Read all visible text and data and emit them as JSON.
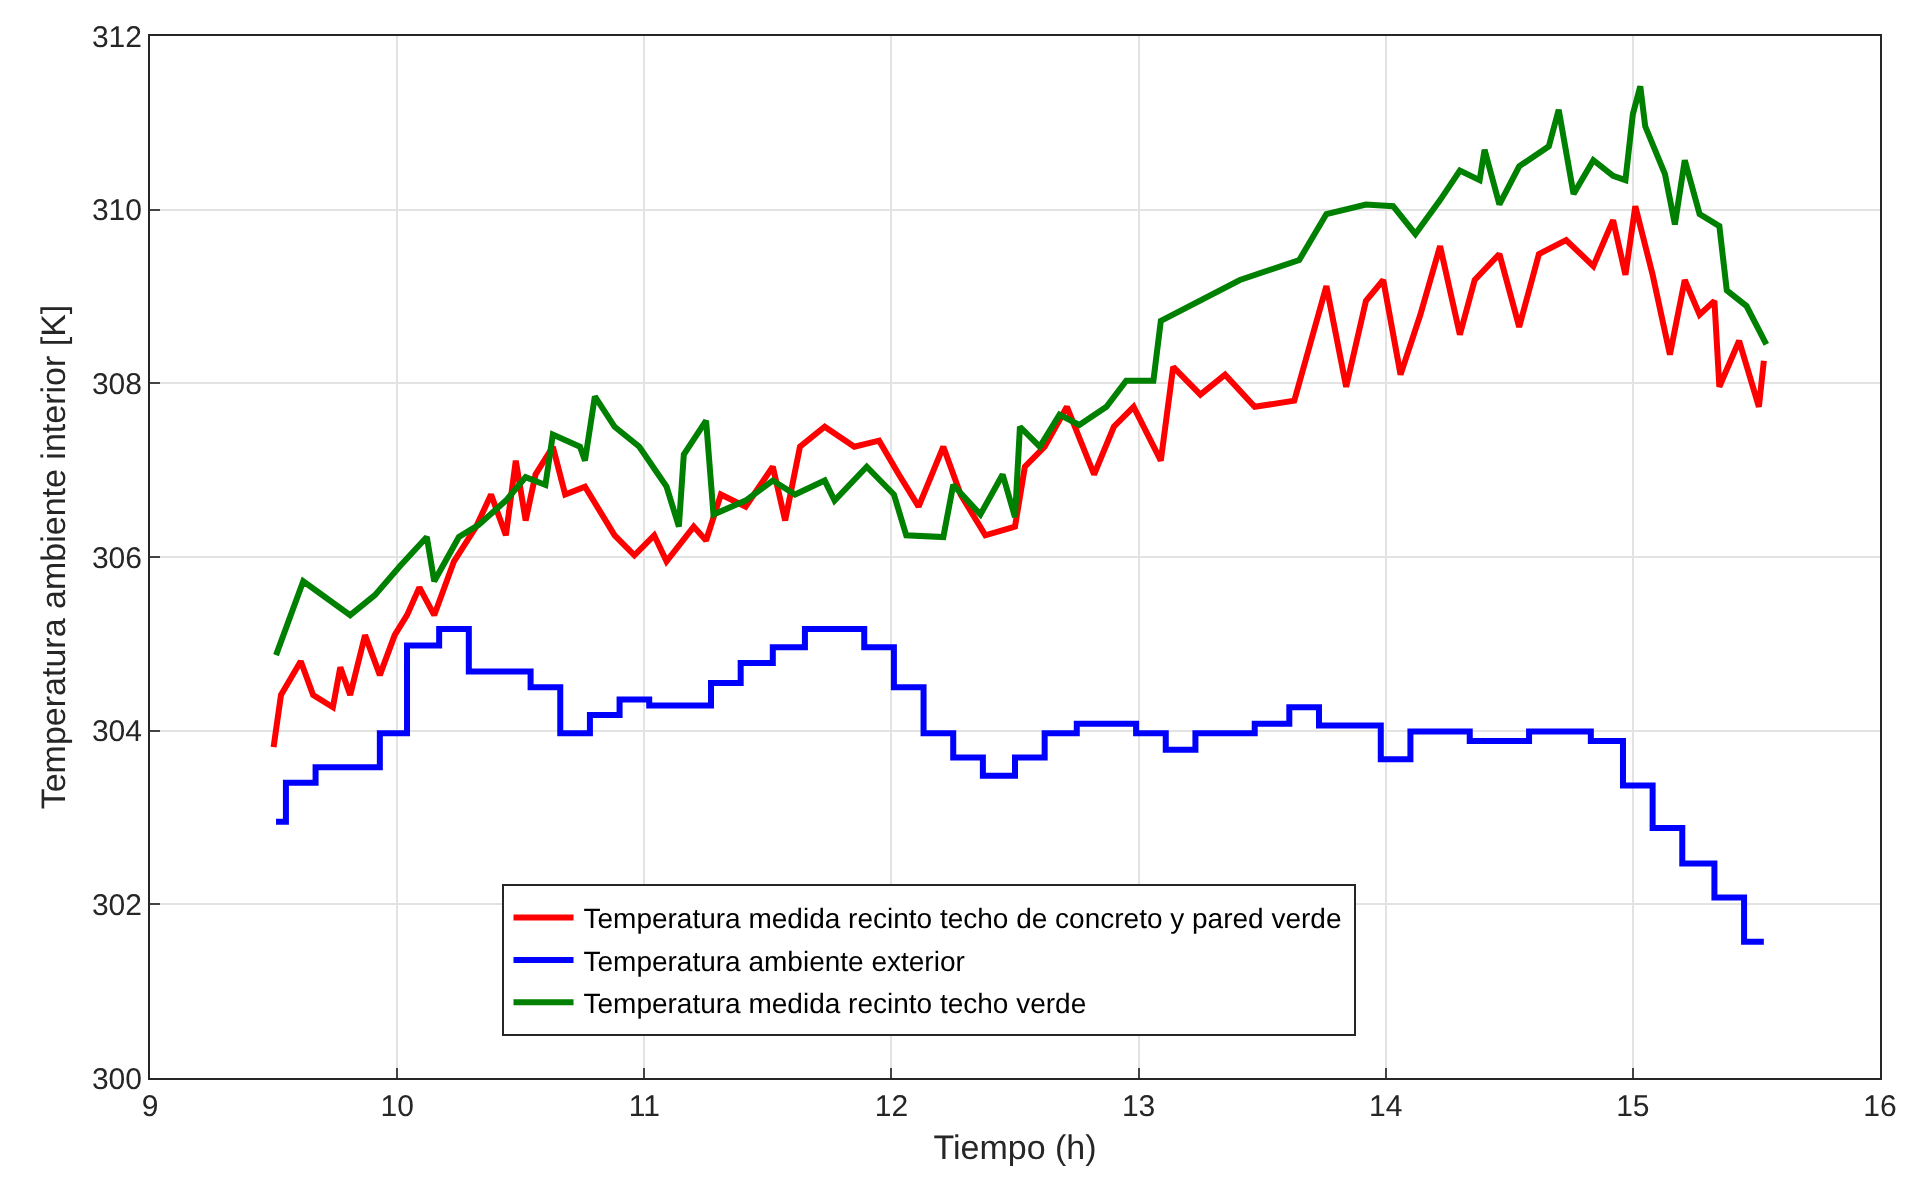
{
  "chart_data": {
    "type": "line",
    "xlabel": "Tiempo (h)",
    "ylabel": "Temperatura ambiente interior [K]",
    "xlim": [
      9,
      16
    ],
    "xticks": [
      9,
      10,
      11,
      12,
      13,
      14,
      15,
      16
    ],
    "ylim": [
      300,
      312
    ],
    "yticks": [
      300,
      302,
      304,
      306,
      308,
      310,
      312
    ],
    "grid": true,
    "legend": "bottom",
    "line_style": "solid",
    "marker": "none",
    "series": [
      {
        "name": "Temperatura medida recinto techo de concreto y pared verde",
        "color": "#ff0000",
        "x": [
          9.5,
          9.53,
          9.61,
          9.66,
          9.74,
          9.77,
          9.81,
          9.87,
          9.93,
          9.99,
          10.04,
          10.09,
          10.15,
          10.23,
          10.32,
          10.38,
          10.44,
          10.48,
          10.52,
          10.56,
          10.63,
          10.68,
          10.76,
          10.88,
          10.96,
          11.04,
          11.09,
          11.2,
          11.25,
          11.31,
          11.41,
          11.52,
          11.57,
          11.63,
          11.73,
          11.85,
          11.95,
          12.03,
          12.11,
          12.21,
          12.28,
          12.38,
          12.5,
          12.54,
          12.62,
          12.71,
          12.82,
          12.9,
          12.98,
          13.09,
          13.14,
          13.25,
          13.35,
          13.47,
          13.63,
          13.76,
          13.84,
          13.92,
          13.99,
          14.06,
          14.14,
          14.22,
          14.3,
          14.36,
          14.46,
          14.54,
          14.62,
          14.73,
          14.84,
          14.92,
          14.97,
          15.01,
          15.08,
          15.15,
          15.21,
          15.27,
          15.33,
          15.35,
          15.43,
          15.51,
          15.53
        ],
        "values": [
          303.81,
          304.41,
          304.8,
          304.41,
          304.27,
          304.73,
          304.41,
          305.1,
          304.64,
          305.1,
          305.33,
          305.65,
          305.33,
          305.95,
          306.35,
          306.72,
          306.25,
          307.11,
          306.42,
          306.95,
          307.27,
          306.72,
          306.81,
          306.25,
          306.02,
          306.25,
          305.95,
          306.35,
          306.19,
          306.72,
          306.58,
          307.04,
          306.42,
          307.27,
          307.5,
          307.27,
          307.34,
          306.95,
          306.58,
          307.27,
          306.72,
          306.25,
          306.35,
          307.04,
          307.27,
          307.73,
          306.95,
          307.5,
          307.73,
          307.11,
          308.19,
          307.87,
          308.1,
          307.73,
          307.8,
          309.12,
          307.96,
          308.95,
          309.19,
          308.1,
          308.79,
          309.58,
          308.56,
          309.19,
          309.49,
          308.65,
          309.49,
          309.65,
          309.35,
          309.88,
          309.25,
          310.04,
          309.25,
          308.33,
          309.19,
          308.79,
          308.95,
          307.96,
          308.49,
          307.73,
          308.26
        ]
      },
      {
        "name": "Temperatura ambiente exterior",
        "color": "#0000ff",
        "type": "step",
        "x": [
          9.51,
          9.55,
          9.67,
          9.93,
          10.04,
          10.17,
          10.29,
          10.54,
          10.66,
          10.78,
          10.9,
          11.02,
          11.27,
          11.39,
          11.52,
          11.65,
          11.89,
          12.01,
          12.13,
          12.25,
          12.37,
          12.5,
          12.62,
          12.75,
          12.99,
          13.11,
          13.23,
          13.47,
          13.61,
          13.73,
          13.98,
          14.1,
          14.34,
          14.58,
          14.83,
          14.96,
          15.08,
          15.2,
          15.33,
          15.45,
          15.53
        ],
        "values": [
          302.95,
          303.4,
          303.58,
          303.97,
          304.98,
          305.17,
          304.68,
          304.5,
          303.97,
          304.18,
          304.36,
          304.29,
          304.55,
          304.78,
          304.96,
          305.17,
          304.96,
          304.5,
          303.97,
          303.69,
          303.48,
          303.69,
          303.97,
          304.08,
          303.97,
          303.78,
          303.97,
          304.08,
          304.27,
          304.06,
          303.67,
          303.99,
          303.88,
          303.99,
          303.88,
          303.37,
          302.88,
          302.47,
          302.08,
          301.57,
          301.57
        ]
      },
      {
        "name": "Temperatura medida recinto techo verde",
        "color": "#008000",
        "x": [
          9.51,
          9.62,
          9.81,
          9.91,
          10.01,
          10.12,
          10.15,
          10.25,
          10.33,
          10.44,
          10.52,
          10.6,
          10.63,
          10.74,
          10.76,
          10.8,
          10.88,
          10.98,
          11.09,
          11.14,
          11.16,
          11.25,
          11.28,
          11.41,
          11.52,
          11.61,
          11.73,
          11.77,
          11.9,
          12.01,
          12.06,
          12.21,
          12.25,
          12.36,
          12.45,
          12.5,
          12.52,
          12.6,
          12.68,
          12.76,
          12.87,
          12.95,
          13.06,
          13.09,
          13.41,
          13.65,
          13.76,
          13.92,
          14.03,
          14.12,
          14.22,
          14.3,
          14.38,
          14.4,
          14.46,
          14.54,
          14.66,
          14.7,
          14.76,
          14.84,
          14.92,
          14.97,
          15.0,
          15.03,
          15.05,
          15.13,
          15.17,
          15.21,
          15.27,
          15.35,
          15.38,
          15.46,
          15.54
        ],
        "values": [
          304.87,
          305.72,
          305.33,
          305.56,
          305.89,
          306.23,
          305.72,
          306.23,
          306.37,
          306.65,
          306.92,
          306.83,
          307.41,
          307.27,
          307.11,
          307.85,
          307.5,
          307.27,
          306.81,
          306.35,
          307.18,
          307.57,
          306.49,
          306.65,
          306.88,
          306.72,
          306.88,
          306.65,
          307.04,
          306.72,
          306.25,
          306.23,
          306.83,
          306.49,
          306.95,
          306.46,
          307.5,
          307.27,
          307.64,
          307.52,
          307.73,
          308.03,
          308.03,
          308.72,
          309.19,
          309.42,
          309.95,
          310.06,
          310.04,
          309.72,
          310.11,
          310.45,
          310.34,
          310.69,
          310.06,
          310.5,
          310.73,
          311.15,
          310.18,
          310.57,
          310.39,
          310.34,
          311.1,
          311.42,
          310.96,
          310.41,
          309.83,
          310.57,
          309.95,
          309.81,
          309.07,
          308.89,
          308.45
        ]
      }
    ]
  }
}
